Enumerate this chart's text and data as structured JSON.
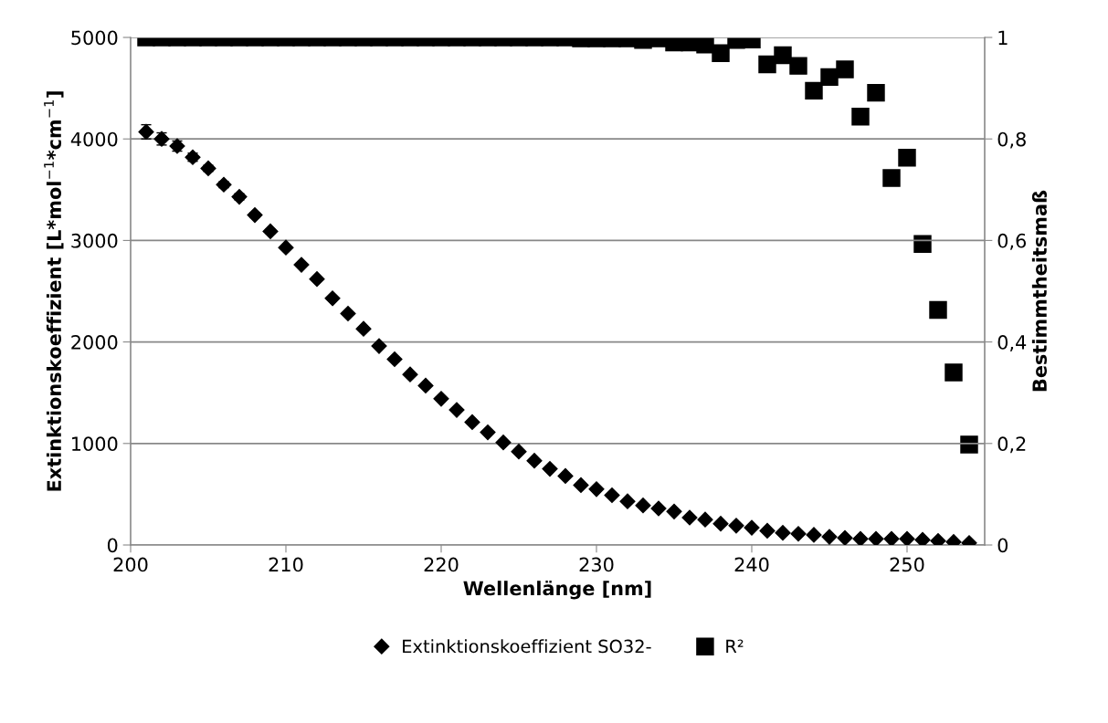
{
  "chart_data": {
    "type": "scatter",
    "xlabel": "Wellenlänge [nm]",
    "ylabel": "Extinktionskoeffizient [L*mol$^{−1}$*cm$^{−1}$]",
    "y2label": "Bestimmtheitsmaß",
    "xlim": [
      200,
      255
    ],
    "xticks": [
      200,
      210,
      220,
      230,
      240,
      250
    ],
    "ylim": [
      0,
      5000
    ],
    "yticks": [
      0,
      1000,
      2000,
      3000,
      4000,
      5000
    ],
    "y2lim": [
      0,
      1
    ],
    "y2ticks": [
      {
        "value": 0,
        "label": "0"
      },
      {
        "value": 0.2,
        "label": "0,2"
      },
      {
        "value": 0.4,
        "label": "0,4"
      },
      {
        "value": 0.6,
        "label": "0,6"
      },
      {
        "value": 0.8,
        "label": "0,8"
      },
      {
        "value": 1,
        "label": "1"
      }
    ],
    "grid": "y",
    "legend": "bottom",
    "x": [
      201,
      202,
      203,
      204,
      205,
      206,
      207,
      208,
      209,
      210,
      211,
      212,
      213,
      214,
      215,
      216,
      217,
      218,
      219,
      220,
      221,
      222,
      223,
      224,
      225,
      226,
      227,
      228,
      229,
      230,
      231,
      232,
      233,
      234,
      235,
      236,
      237,
      238,
      239,
      240,
      241,
      242,
      243,
      244,
      245,
      246,
      247,
      248,
      249,
      250,
      251,
      252,
      253,
      254
    ],
    "series": [
      {
        "name": "Extinktionskoeffizient SO32-",
        "color": "#000000",
        "marker": "diamond",
        "values": [
          4070,
          4000,
          3930,
          3820,
          3710,
          3550,
          3430,
          3250,
          3090,
          2930,
          2760,
          2620,
          2430,
          2280,
          2130,
          1960,
          1830,
          1680,
          1570,
          1440,
          1330,
          1210,
          1110,
          1010,
          920,
          830,
          750,
          680,
          590,
          550,
          490,
          430,
          390,
          360,
          330,
          270,
          250,
          210,
          190,
          170,
          140,
          120,
          110,
          100,
          80,
          70,
          60,
          60,
          60,
          60,
          50,
          40,
          30,
          20
        ],
        "errors": [
          70,
          60,
          50,
          40,
          30,
          30,
          30,
          25,
          20,
          null,
          null,
          null,
          null,
          null,
          null,
          null,
          null,
          null,
          null,
          null,
          null,
          null,
          null,
          null,
          null,
          null,
          null,
          null,
          null,
          null,
          null,
          null,
          null,
          null,
          null,
          null,
          null,
          null,
          null,
          null,
          null,
          null,
          null,
          null,
          null,
          null,
          null,
          null,
          null,
          null,
          null,
          null,
          null,
          null
        ]
      },
      {
        "name": "R²",
        "color": "#000000",
        "marker": "square",
        "axis": "y2",
        "values": [
          1,
          1,
          1,
          1,
          1,
          1,
          1,
          1,
          1,
          1,
          1,
          1,
          1,
          1,
          1,
          1,
          1,
          1,
          1,
          1,
          1,
          1,
          1,
          1,
          1,
          1,
          1,
          1,
          0.998,
          0.998,
          0.998,
          0.998,
          0.995,
          0.998,
          0.99,
          0.99,
          0.986,
          0.969,
          0.995,
          0.996,
          0.947,
          0.965,
          0.944,
          0.895,
          0.922,
          0.937,
          0.844,
          0.891,
          0.723,
          0.763,
          0.593,
          0.463,
          0.34,
          0.198
        ]
      }
    ]
  }
}
